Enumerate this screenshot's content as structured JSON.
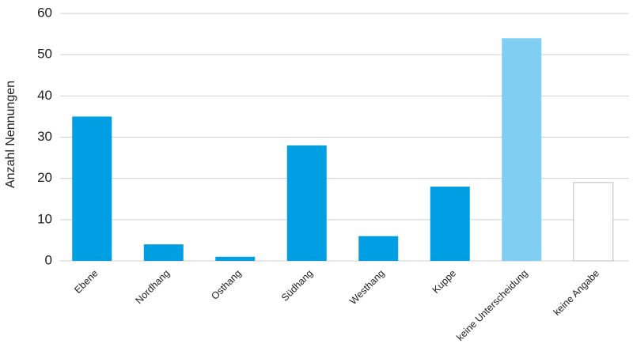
{
  "chart_data": {
    "type": "bar",
    "y_label": "Anzahl Nennungen",
    "categories": [
      "Ebene",
      "Nordhang",
      "Osthang",
      "Südhang",
      "Westhang",
      "Kuppe",
      "keine Unterscheidung",
      "keine Angabe"
    ],
    "values": [
      35,
      4,
      1,
      28,
      6,
      18,
      54,
      19
    ],
    "colors": [
      "#009fe3",
      "#009fe3",
      "#009fe3",
      "#009fe3",
      "#009fe3",
      "#009fe3",
      "#80cff3",
      "#ffffff"
    ],
    "ylim": [
      0,
      60
    ],
    "yticks": [
      0,
      10,
      20,
      30,
      40,
      50,
      60
    ],
    "grid": true
  }
}
